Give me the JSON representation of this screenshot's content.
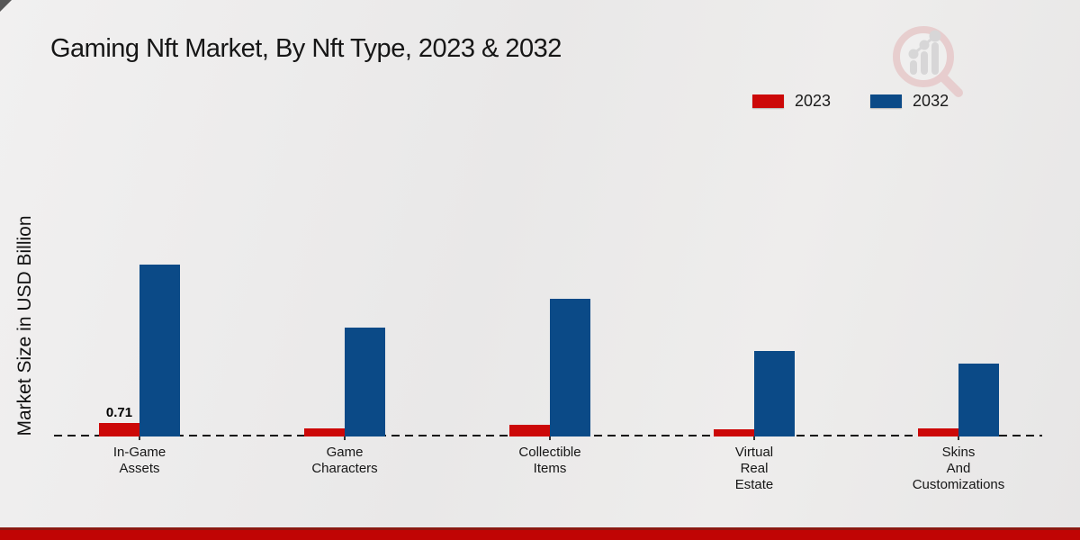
{
  "page": {
    "title": "Gaming Nft Market, By Nft Type, 2023 & 2032",
    "ylabel": "Market Size in USD Billion"
  },
  "legend": [
    {
      "label": "2023",
      "color": "#cc0808"
    },
    {
      "label": "2032",
      "color": "#0b4a87"
    }
  ],
  "branding": {
    "logo": "magnifier-bar-chart-logo"
  },
  "chart_data": {
    "type": "bar",
    "title": "Gaming Nft Market, By Nft Type, 2023 & 2032",
    "xlabel": "",
    "ylabel": "Market Size in USD Billion",
    "categories": [
      "In-Game Assets",
      "Game Characters",
      "Collectible Items",
      "Virtual Real Estate",
      "Skins And Customizations"
    ],
    "category_lines": [
      [
        "In-Game",
        "Assets"
      ],
      [
        "Game",
        "Characters"
      ],
      [
        "Collectible",
        "Items"
      ],
      [
        "Virtual",
        "Real",
        "Estate"
      ],
      [
        "Skins",
        "And",
        "Customizations"
      ]
    ],
    "series": [
      {
        "name": "2023",
        "color": "#cc0808",
        "values": [
          0.71,
          0.43,
          0.62,
          0.38,
          0.43
        ]
      },
      {
        "name": "2032",
        "color": "#0b4a87",
        "values": [
          9.0,
          5.7,
          7.2,
          4.5,
          3.8
        ]
      }
    ],
    "annotations": [
      {
        "series_index": 0,
        "category_index": 0,
        "text": "0.71"
      }
    ],
    "ylim": [
      0,
      10
    ],
    "grid": false,
    "axis_line_style": "dashed-baseline",
    "legend_position": "top-right"
  }
}
